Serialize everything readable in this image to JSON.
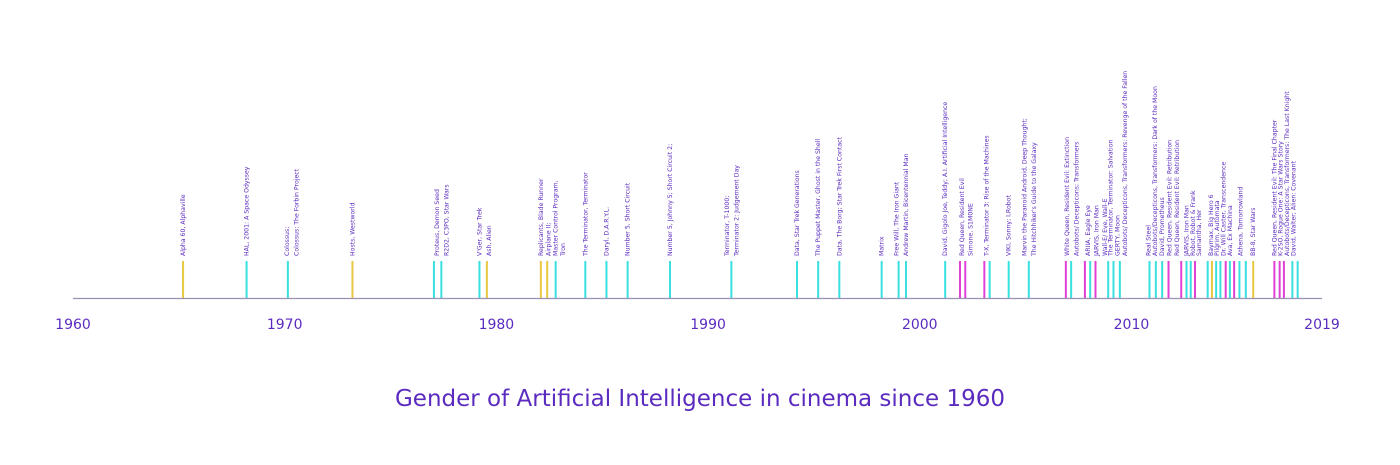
{
  "title": "Gender of Artificial Intelligence in cinema since 1960",
  "colors": {
    "axis": "#9c90b2",
    "text": "#5b2bbf"
  },
  "chart_data": {
    "type": "timeline",
    "xlim": [
      1960,
      2019
    ],
    "ticks": [
      1960,
      1970,
      1980,
      1990,
      2000,
      2010,
      2019
    ],
    "category_colors": {
      "female": "#e040d6",
      "male": "#38e0e0",
      "neutral": "#e8c840"
    },
    "labels": [
      {
        "x": 1965.2,
        "text": "Alpha 60, Alphaville"
      },
      {
        "x": 1968.2,
        "text": "HAL, 2001: A Space Odyssey"
      },
      {
        "x": 1970.1,
        "text": "Colossus;"
      },
      {
        "x": 1970.55,
        "text": "Colossus: The Forbin Project"
      },
      {
        "x": 1973.2,
        "text": "Hosts, Westworld"
      },
      {
        "x": 1977.2,
        "text": "Proteus, Demon Seed"
      },
      {
        "x": 1977.65,
        "text": "R2D2, C3PO, Star Wars"
      },
      {
        "x": 1979.2,
        "text": "V'Ger, Star Trek"
      },
      {
        "x": 1979.65,
        "text": "Ash, Alien"
      },
      {
        "x": 1982.1,
        "text": "Replicants, Blade Runner"
      },
      {
        "x": 1982.45,
        "text": "Airplane II;"
      },
      {
        "x": 1982.8,
        "text": "Master Control Program,"
      },
      {
        "x": 1983.15,
        "text": "Tron"
      },
      {
        "x": 1984.2,
        "text": "The Terminator, Terminator"
      },
      {
        "x": 1985.2,
        "text": "Daryl, D.A.R.Y.L."
      },
      {
        "x": 1986.2,
        "text": "Number 5, Short Circuit"
      },
      {
        "x": 1988.2,
        "text": "Number 5, Johnny 5; Short Circuit 2;"
      },
      {
        "x": 1990.9,
        "text": "Terminator, T-1000;"
      },
      {
        "x": 1991.35,
        "text": "Terminator 2: Judgement Day"
      },
      {
        "x": 1994.2,
        "text": "Data, Star Trek Generations"
      },
      {
        "x": 1995.2,
        "text": "The Puppet Master, Ghost in the Shell"
      },
      {
        "x": 1996.2,
        "text": "Data, The Borg; Star Trek First Contact"
      },
      {
        "x": 1998.2,
        "text": "Matrix"
      },
      {
        "x": 1998.9,
        "text": "Free Will, The Iron Giant"
      },
      {
        "x": 1999.35,
        "text": "Andrew Martin, Bicentennial Man"
      },
      {
        "x": 2001.2,
        "text": "David, Gigolo Joe, Teddy; A.I. Artificial Intelligence"
      },
      {
        "x": 2002.0,
        "text": "Red Queen, Resident Evil"
      },
      {
        "x": 2002.4,
        "text": "Simone, S1M0NE"
      },
      {
        "x": 2003.15,
        "text": "T-X, Terminator 3: Rise of the Machines"
      },
      {
        "x": 2004.2,
        "text": "VIKI, Sonny; I,Robot"
      },
      {
        "x": 2004.95,
        "text": "Marvin the Paranoid Android, Deep Thought;"
      },
      {
        "x": 2005.4,
        "text": "The Hitchhiker's Guide to the Galaxy"
      },
      {
        "x": 2006.95,
        "text": "White Queen, Resident Evil: Extinction"
      },
      {
        "x": 2007.4,
        "text": "Autobots/ Decepticons; Transformers"
      },
      {
        "x": 2007.95,
        "text": "ARIIA, Eagle Eye"
      },
      {
        "x": 2008.35,
        "text": "JARVIS, Iron Man"
      },
      {
        "x": 2008.75,
        "text": "Wall-E/ Eve, Wall-E"
      },
      {
        "x": 2009.0,
        "text": "The Terminator, Terminator: Salvation"
      },
      {
        "x": 2009.35,
        "text": "GERTY, Moon"
      },
      {
        "x": 2009.7,
        "text": "Autobots/ Decepticons, Transformers: Revenge of the Fallen"
      },
      {
        "x": 2010.8,
        "text": "Real Steel"
      },
      {
        "x": 2011.1,
        "text": "Autobots/Decepticons, Transformers: Dark of the Moon"
      },
      {
        "x": 2011.45,
        "text": "David, Prometheus"
      },
      {
        "x": 2011.8,
        "text": "Red Queen, Resident Evil: Retribution"
      },
      {
        "x": 2012.15,
        "text": "Red Queen, Resident Evil: Retribution"
      },
      {
        "x": 2012.6,
        "text": "JARVIS, Iron Man"
      },
      {
        "x": 2012.9,
        "text": "Robot, Robot & Frank"
      },
      {
        "x": 2013.2,
        "text": "Samantha, Her"
      },
      {
        "x": 2013.75,
        "text": "Baymax, Big Hero 6"
      },
      {
        "x": 2014.05,
        "text": "Pilgrim, Automata"
      },
      {
        "x": 2014.35,
        "text": "Dr. Will Caster, Transcendence"
      },
      {
        "x": 2014.65,
        "text": "Ava, Ex Machina"
      },
      {
        "x": 2015.15,
        "text": "Athena, Tomorrowland"
      },
      {
        "x": 2015.75,
        "text": "BB-8, Star Wars"
      },
      {
        "x": 2016.75,
        "text": "Red Queen, Resident Evil: The Final Chapter"
      },
      {
        "x": 2017.05,
        "text": "K-2SO, Rogue One: A Star Wars Story"
      },
      {
        "x": 2017.35,
        "text": "Autobots/Decepticons, Transformers: The Last Knight"
      },
      {
        "x": 2017.65,
        "text": "David, Walter; Alien: Covenant"
      }
    ],
    "bars": [
      {
        "x": 1965.2,
        "g": "neutral"
      },
      {
        "x": 1968.2,
        "g": "male"
      },
      {
        "x": 1970.15,
        "g": "male"
      },
      {
        "x": 1973.2,
        "g": "neutral"
      },
      {
        "x": 1977.05,
        "g": "male"
      },
      {
        "x": 1977.4,
        "g": "male"
      },
      {
        "x": 1979.2,
        "g": "male"
      },
      {
        "x": 1979.55,
        "g": "neutral"
      },
      {
        "x": 1982.1,
        "g": "neutral"
      },
      {
        "x": 1982.4,
        "g": "neutral"
      },
      {
        "x": 1982.8,
        "g": "male"
      },
      {
        "x": 1984.2,
        "g": "male"
      },
      {
        "x": 1985.2,
        "g": "male"
      },
      {
        "x": 1986.2,
        "g": "male"
      },
      {
        "x": 1988.2,
        "g": "male"
      },
      {
        "x": 1991.1,
        "g": "male"
      },
      {
        "x": 1994.2,
        "g": "male"
      },
      {
        "x": 1995.2,
        "g": "male"
      },
      {
        "x": 1996.2,
        "g": "male"
      },
      {
        "x": 1998.2,
        "g": "male"
      },
      {
        "x": 1999.0,
        "g": "male"
      },
      {
        "x": 1999.35,
        "g": "male"
      },
      {
        "x": 2001.2,
        "g": "male"
      },
      {
        "x": 2001.9,
        "g": "female"
      },
      {
        "x": 2002.15,
        "g": "female"
      },
      {
        "x": 2003.05,
        "g": "female"
      },
      {
        "x": 2003.3,
        "g": "male"
      },
      {
        "x": 2004.2,
        "g": "male"
      },
      {
        "x": 2005.15,
        "g": "male"
      },
      {
        "x": 2006.9,
        "g": "female"
      },
      {
        "x": 2007.15,
        "g": "male"
      },
      {
        "x": 2007.8,
        "g": "female"
      },
      {
        "x": 2008.05,
        "g": "male"
      },
      {
        "x": 2008.3,
        "g": "female"
      },
      {
        "x": 2008.9,
        "g": "male"
      },
      {
        "x": 2009.15,
        "g": "male"
      },
      {
        "x": 2009.45,
        "g": "male"
      },
      {
        "x": 2010.85,
        "g": "male"
      },
      {
        "x": 2011.15,
        "g": "male"
      },
      {
        "x": 2011.45,
        "g": "male"
      },
      {
        "x": 2011.75,
        "g": "female"
      },
      {
        "x": 2012.35,
        "g": "female"
      },
      {
        "x": 2012.6,
        "g": "male"
      },
      {
        "x": 2012.8,
        "g": "male"
      },
      {
        "x": 2013.0,
        "g": "female"
      },
      {
        "x": 2013.6,
        "g": "male"
      },
      {
        "x": 2013.8,
        "g": "neutral"
      },
      {
        "x": 2014.0,
        "g": "male"
      },
      {
        "x": 2014.2,
        "g": "male"
      },
      {
        "x": 2014.45,
        "g": "female"
      },
      {
        "x": 2014.65,
        "g": "male"
      },
      {
        "x": 2014.85,
        "g": "female"
      },
      {
        "x": 2015.1,
        "g": "male"
      },
      {
        "x": 2015.4,
        "g": "male"
      },
      {
        "x": 2015.75,
        "g": "neutral"
      },
      {
        "x": 2016.75,
        "g": "female"
      },
      {
        "x": 2017.0,
        "g": "female"
      },
      {
        "x": 2017.2,
        "g": "female"
      },
      {
        "x": 2017.6,
        "g": "male"
      },
      {
        "x": 2017.85,
        "g": "male"
      }
    ]
  }
}
